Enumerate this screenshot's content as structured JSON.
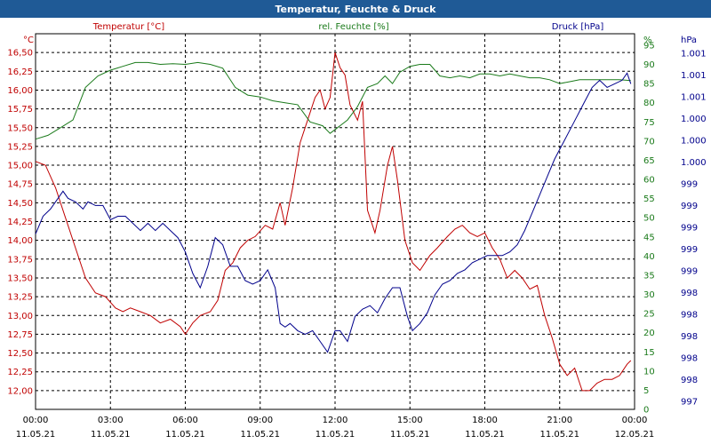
{
  "window": {
    "title": "Temperatur, Feuchte & Druck"
  },
  "chart_data": {
    "type": "line",
    "title": "Temperatur, Feuchte & Druck",
    "legend": [
      "Temperatur [°C]",
      "rel. Feuchte [%]",
      "Druck [hPa]"
    ],
    "units": {
      "left": "°C",
      "right_inner": "%",
      "right_outer": "hPa"
    },
    "x_ticks": [
      {
        "time": "00:00",
        "date": "11.05.21"
      },
      {
        "time": "03:00",
        "date": "11.05.21"
      },
      {
        "time": "06:00",
        "date": "11.05.21"
      },
      {
        "time": "09:00",
        "date": "11.05.21"
      },
      {
        "time": "12:00",
        "date": "11.05.21"
      },
      {
        "time": "15:00",
        "date": "11.05.21"
      },
      {
        "time": "18:00",
        "date": "11.05.21"
      },
      {
        "time": "21:00",
        "date": "11.05.21"
      },
      {
        "time": "00:00",
        "date": "12.05.21"
      }
    ],
    "xlim_hours": [
      0,
      24
    ],
    "axes": {
      "temperature": {
        "ylim": [
          11.75,
          16.75
        ],
        "ticks": [
          "16,50",
          "16,25",
          "16,00",
          "15,75",
          "15,50",
          "15,25",
          "15,00",
          "14,75",
          "14,50",
          "14,25",
          "14,00",
          "13,75",
          "13,50",
          "13,25",
          "13,00",
          "12,75",
          "12,50",
          "12,25",
          "12,00"
        ]
      },
      "humidity": {
        "ylim": [
          0,
          98
        ],
        "ticks": [
          "95",
          "90",
          "85",
          "80",
          "75",
          "70",
          "65",
          "60",
          "55",
          "50",
          "45",
          "40",
          "35",
          "30",
          "25",
          "20",
          "15",
          "10",
          "5",
          "0"
        ]
      },
      "pressure": {
        "ylim": [
          996.5,
          1001.75
        ],
        "ticks": [
          "1.001",
          "1.001",
          "1.001",
          "1.000",
          "1.000",
          "1.000",
          "999",
          "999",
          "999",
          "999",
          "999",
          "998",
          "998",
          "998",
          "998",
          "998",
          "997"
        ]
      }
    },
    "series": [
      {
        "name": "Temperatur [°C]",
        "color": "#c00000",
        "axis": "temperature",
        "points": [
          [
            0,
            15.05
          ],
          [
            0.4,
            15.0
          ],
          [
            0.8,
            14.7
          ],
          [
            1.2,
            14.3
          ],
          [
            1.6,
            13.9
          ],
          [
            2.0,
            13.5
          ],
          [
            2.4,
            13.3
          ],
          [
            2.8,
            13.25
          ],
          [
            3.2,
            13.1
          ],
          [
            3.5,
            13.05
          ],
          [
            3.8,
            13.1
          ],
          [
            4.2,
            13.05
          ],
          [
            4.6,
            13.0
          ],
          [
            5.0,
            12.9
          ],
          [
            5.4,
            12.95
          ],
          [
            5.8,
            12.85
          ],
          [
            6.0,
            12.75
          ],
          [
            6.3,
            12.9
          ],
          [
            6.6,
            13.0
          ],
          [
            7.0,
            13.05
          ],
          [
            7.3,
            13.2
          ],
          [
            7.6,
            13.6
          ],
          [
            7.9,
            13.7
          ],
          [
            8.2,
            13.9
          ],
          [
            8.5,
            14.0
          ],
          [
            8.8,
            14.05
          ],
          [
            9.2,
            14.2
          ],
          [
            9.5,
            14.15
          ],
          [
            9.8,
            14.5
          ],
          [
            10.0,
            14.2
          ],
          [
            10.3,
            14.7
          ],
          [
            10.6,
            15.3
          ],
          [
            10.9,
            15.6
          ],
          [
            11.2,
            15.9
          ],
          [
            11.4,
            16.0
          ],
          [
            11.6,
            15.75
          ],
          [
            11.8,
            15.9
          ],
          [
            12.0,
            16.5
          ],
          [
            12.2,
            16.3
          ],
          [
            12.4,
            16.2
          ],
          [
            12.6,
            15.8
          ],
          [
            12.9,
            15.6
          ],
          [
            13.1,
            15.85
          ],
          [
            13.3,
            14.4
          ],
          [
            13.6,
            14.1
          ],
          [
            13.8,
            14.4
          ],
          [
            14.1,
            15.0
          ],
          [
            14.3,
            15.25
          ],
          [
            14.5,
            14.8
          ],
          [
            14.8,
            14.0
          ],
          [
            15.1,
            13.7
          ],
          [
            15.4,
            13.6
          ],
          [
            15.8,
            13.8
          ],
          [
            16.1,
            13.9
          ],
          [
            16.5,
            14.05
          ],
          [
            16.8,
            14.15
          ],
          [
            17.1,
            14.2
          ],
          [
            17.4,
            14.1
          ],
          [
            17.7,
            14.05
          ],
          [
            18.0,
            14.1
          ],
          [
            18.3,
            13.9
          ],
          [
            18.6,
            13.75
          ],
          [
            18.9,
            13.5
          ],
          [
            19.2,
            13.6
          ],
          [
            19.5,
            13.5
          ],
          [
            19.8,
            13.35
          ],
          [
            20.1,
            13.4
          ],
          [
            20.4,
            13.0
          ],
          [
            20.7,
            12.7
          ],
          [
            21.0,
            12.35
          ],
          [
            21.3,
            12.2
          ],
          [
            21.6,
            12.3
          ],
          [
            21.9,
            12.0
          ],
          [
            22.2,
            12.0
          ],
          [
            22.5,
            12.1
          ],
          [
            22.8,
            12.15
          ],
          [
            23.1,
            12.15
          ],
          [
            23.4,
            12.2
          ],
          [
            23.7,
            12.35
          ],
          [
            23.85,
            12.4
          ]
        ]
      },
      {
        "name": "rel. Feuchte [%]",
        "color": "#1a7a1a",
        "axis": "humidity",
        "points": [
          [
            0,
            70.5
          ],
          [
            0.5,
            71.5
          ],
          [
            1.0,
            73.5
          ],
          [
            1.5,
            75.5
          ],
          [
            2.0,
            84
          ],
          [
            2.5,
            87
          ],
          [
            3.0,
            88.5
          ],
          [
            3.5,
            89.5
          ],
          [
            4.0,
            90.5
          ],
          [
            4.5,
            90.5
          ],
          [
            5.0,
            90
          ],
          [
            5.5,
            90.2
          ],
          [
            6.0,
            90
          ],
          [
            6.5,
            90.5
          ],
          [
            7.0,
            90
          ],
          [
            7.5,
            89
          ],
          [
            8.0,
            84
          ],
          [
            8.5,
            82
          ],
          [
            9.0,
            81.5
          ],
          [
            9.5,
            80.5
          ],
          [
            10.0,
            80
          ],
          [
            10.5,
            79.5
          ],
          [
            11.0,
            75
          ],
          [
            11.5,
            74
          ],
          [
            11.8,
            72
          ],
          [
            12.2,
            74
          ],
          [
            12.5,
            75.5
          ],
          [
            12.9,
            79
          ],
          [
            13.3,
            84
          ],
          [
            13.7,
            85
          ],
          [
            14.0,
            87
          ],
          [
            14.3,
            85
          ],
          [
            14.6,
            88
          ],
          [
            15.0,
            89.5
          ],
          [
            15.4,
            90
          ],
          [
            15.8,
            90
          ],
          [
            16.2,
            87
          ],
          [
            16.6,
            86.5
          ],
          [
            17.0,
            87
          ],
          [
            17.4,
            86.5
          ],
          [
            17.8,
            87.5
          ],
          [
            18.2,
            87.5
          ],
          [
            18.6,
            87
          ],
          [
            19.0,
            87.5
          ],
          [
            19.4,
            87
          ],
          [
            19.8,
            86.5
          ],
          [
            20.2,
            86.5
          ],
          [
            20.6,
            86
          ],
          [
            21.0,
            85
          ],
          [
            21.4,
            85.5
          ],
          [
            21.8,
            86
          ],
          [
            22.2,
            86
          ],
          [
            22.6,
            86
          ],
          [
            23.0,
            86
          ],
          [
            23.4,
            86
          ],
          [
            23.85,
            85.8
          ]
        ]
      },
      {
        "name": "Druck [hPa]",
        "color": "#00008b",
        "axis": "pressure",
        "points": [
          [
            0,
            998.95
          ],
          [
            0.3,
            999.2
          ],
          [
            0.6,
            999.3
          ],
          [
            0.9,
            999.45
          ],
          [
            1.1,
            999.55
          ],
          [
            1.3,
            999.45
          ],
          [
            1.6,
            999.4
          ],
          [
            1.9,
            999.3
          ],
          [
            2.1,
            999.4
          ],
          [
            2.4,
            999.35
          ],
          [
            2.7,
            999.35
          ],
          [
            3.0,
            999.15
          ],
          [
            3.3,
            999.2
          ],
          [
            3.6,
            999.2
          ],
          [
            3.9,
            999.1
          ],
          [
            4.2,
            999.0
          ],
          [
            4.5,
            999.1
          ],
          [
            4.8,
            999.0
          ],
          [
            5.1,
            999.1
          ],
          [
            5.4,
            999.0
          ],
          [
            5.7,
            998.9
          ],
          [
            6.0,
            998.7
          ],
          [
            6.3,
            998.4
          ],
          [
            6.6,
            998.2
          ],
          [
            6.9,
            998.5
          ],
          [
            7.2,
            998.9
          ],
          [
            7.5,
            998.8
          ],
          [
            7.8,
            998.5
          ],
          [
            8.1,
            998.5
          ],
          [
            8.4,
            998.3
          ],
          [
            8.7,
            998.25
          ],
          [
            9.0,
            998.3
          ],
          [
            9.3,
            998.45
          ],
          [
            9.6,
            998.2
          ],
          [
            9.8,
            997.7
          ],
          [
            10.0,
            997.65
          ],
          [
            10.2,
            997.7
          ],
          [
            10.5,
            997.6
          ],
          [
            10.8,
            997.55
          ],
          [
            11.1,
            997.6
          ],
          [
            11.4,
            997.45
          ],
          [
            11.7,
            997.3
          ],
          [
            12.0,
            997.6
          ],
          [
            12.2,
            997.6
          ],
          [
            12.5,
            997.45
          ],
          [
            12.8,
            997.8
          ],
          [
            13.1,
            997.9
          ],
          [
            13.4,
            997.95
          ],
          [
            13.7,
            997.85
          ],
          [
            14.0,
            998.05
          ],
          [
            14.3,
            998.2
          ],
          [
            14.6,
            998.2
          ],
          [
            14.9,
            997.8
          ],
          [
            15.1,
            997.6
          ],
          [
            15.4,
            997.7
          ],
          [
            15.7,
            997.85
          ],
          [
            16.0,
            998.1
          ],
          [
            16.3,
            998.25
          ],
          [
            16.6,
            998.3
          ],
          [
            16.9,
            998.4
          ],
          [
            17.2,
            998.45
          ],
          [
            17.5,
            998.55
          ],
          [
            17.8,
            998.6
          ],
          [
            18.1,
            998.65
          ],
          [
            18.4,
            998.65
          ],
          [
            18.7,
            998.65
          ],
          [
            19.0,
            998.7
          ],
          [
            19.3,
            998.8
          ],
          [
            19.6,
            999.0
          ],
          [
            19.9,
            999.25
          ],
          [
            20.2,
            999.5
          ],
          [
            20.5,
            999.75
          ],
          [
            20.8,
            1000.0
          ],
          [
            21.1,
            1000.2
          ],
          [
            21.4,
            1000.4
          ],
          [
            21.7,
            1000.6
          ],
          [
            22.0,
            1000.8
          ],
          [
            22.3,
            1001.0
          ],
          [
            22.6,
            1001.1
          ],
          [
            22.9,
            1001.0
          ],
          [
            23.2,
            1001.05
          ],
          [
            23.5,
            1001.1
          ],
          [
            23.7,
            1001.2
          ],
          [
            23.85,
            1001.05
          ]
        ]
      }
    ]
  }
}
